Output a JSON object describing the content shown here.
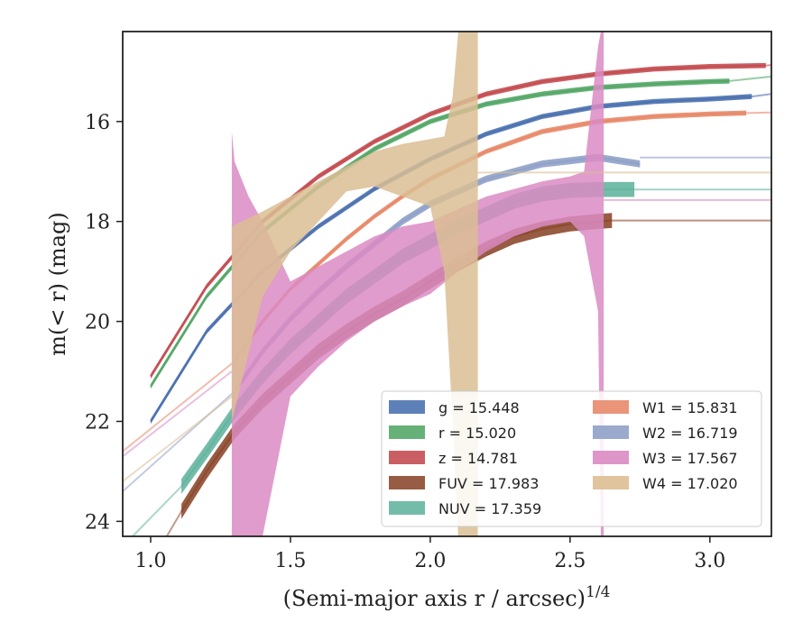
{
  "chart_data": {
    "type": "line",
    "title": "",
    "xlabel": "(Semi-major axis r / arcsec)",
    "xlabel_exponent": "1/4",
    "ylabel": "m(< r) (mag)",
    "xlim": [
      0.9,
      3.22
    ],
    "ylim": [
      24.3,
      14.2
    ],
    "y_inverted": true,
    "x_ticks": [
      1.0,
      1.5,
      2.0,
      2.5,
      3.0
    ],
    "x_tick_labels": [
      "1.0",
      "1.5",
      "2.0",
      "2.5",
      "3.0"
    ],
    "y_ticks": [
      16,
      18,
      20,
      22,
      24
    ],
    "y_tick_labels": [
      "16",
      "18",
      "20",
      "22",
      "24"
    ],
    "grid": false,
    "legend_position": "lower-right",
    "legend_columns": 2,
    "series": [
      {
        "id": "g",
        "label": "g = 15.448",
        "color": "#4C72B0",
        "band": 0.05,
        "x": [
          1.0,
          1.2,
          1.4,
          1.6,
          1.8,
          2.0,
          2.2,
          2.4,
          2.6,
          2.8,
          3.0,
          3.15
        ],
        "y": [
          22.0,
          20.2,
          19.0,
          18.1,
          17.35,
          16.75,
          16.25,
          15.9,
          15.7,
          15.6,
          15.55,
          15.5
        ],
        "ext_x": [
          3.15,
          3.22
        ],
        "ext_y": [
          15.5,
          15.45
        ]
      },
      {
        "id": "r",
        "label": "r = 15.020",
        "color": "#55A868",
        "band": 0.05,
        "x": [
          1.0,
          1.2,
          1.4,
          1.6,
          1.8,
          2.0,
          2.2,
          2.4,
          2.6,
          2.8,
          3.0,
          3.07
        ],
        "y": [
          21.3,
          19.5,
          18.2,
          17.3,
          16.55,
          16.0,
          15.65,
          15.45,
          15.32,
          15.25,
          15.2,
          15.19
        ],
        "ext_x": [
          3.07,
          3.22
        ],
        "ext_y": [
          15.19,
          15.1
        ]
      },
      {
        "id": "z",
        "label": "z = 14.781",
        "color": "#C44E52",
        "band": 0.05,
        "x": [
          1.0,
          1.2,
          1.4,
          1.6,
          1.8,
          2.0,
          2.2,
          2.4,
          2.6,
          2.8,
          3.0,
          3.2
        ],
        "y": [
          21.1,
          19.3,
          18.0,
          17.1,
          16.4,
          15.85,
          15.45,
          15.2,
          15.05,
          14.95,
          14.9,
          14.88
        ],
        "ext_x": [
          3.2,
          3.22
        ],
        "ext_y": [
          14.88,
          14.87
        ]
      },
      {
        "id": "FUV",
        "label": "FUV = 17.983",
        "color": "#8C4A2F",
        "band": 0.15,
        "x": [
          1.11,
          1.2,
          1.3,
          1.4,
          1.5,
          1.6,
          1.7,
          1.8,
          1.9,
          2.0,
          2.1,
          2.2,
          2.3,
          2.4,
          2.5,
          2.6,
          2.65
        ],
        "y": [
          23.8,
          23.0,
          22.2,
          21.6,
          21.1,
          20.6,
          20.2,
          19.85,
          19.55,
          19.2,
          18.85,
          18.55,
          18.3,
          18.15,
          18.05,
          18.0,
          17.98
        ],
        "ext_x": [
          2.65,
          3.22
        ],
        "ext_y": [
          17.98,
          17.98
        ],
        "pre_x": [
          0.9,
          1.11
        ],
        "pre_y": [
          25.8,
          23.8
        ]
      },
      {
        "id": "NUV",
        "label": "NUV = 17.359",
        "color": "#64B5A0",
        "band": 0.15,
        "x": [
          1.11,
          1.2,
          1.3,
          1.4,
          1.5,
          1.6,
          1.7,
          1.8,
          1.9,
          2.0,
          2.1,
          2.2,
          2.3,
          2.4,
          2.5,
          2.6,
          2.73
        ],
        "y": [
          23.3,
          22.6,
          21.8,
          21.1,
          20.5,
          20.0,
          19.5,
          19.1,
          18.7,
          18.4,
          18.1,
          17.85,
          17.6,
          17.45,
          17.38,
          17.36,
          17.36
        ],
        "ext_x": [
          2.73,
          3.22
        ],
        "ext_y": [
          17.36,
          17.36
        ],
        "pre_x": [
          0.9,
          1.11
        ],
        "pre_y": [
          24.5,
          23.3
        ]
      },
      {
        "id": "W1",
        "label": "W1 = 15.831",
        "color": "#E8896A",
        "band": 0.05,
        "x": [
          1.3,
          1.4,
          1.5,
          1.6,
          1.7,
          1.8,
          1.9,
          2.0,
          2.2,
          2.4,
          2.6,
          2.8,
          3.0,
          3.13
        ],
        "y": [
          20.8,
          20.0,
          19.35,
          18.85,
          18.35,
          17.9,
          17.5,
          17.15,
          16.6,
          16.2,
          16.0,
          15.9,
          15.85,
          15.83
        ],
        "ext_x": [
          3.13,
          3.22
        ],
        "ext_y": [
          15.83,
          15.82
        ],
        "pre_x": [
          0.9,
          1.3
        ],
        "pre_y": [
          22.6,
          20.8
        ]
      },
      {
        "id": "W2",
        "label": "W2 = 16.719",
        "color": "#8FA1C8",
        "band": 0.07,
        "x": [
          1.3,
          1.4,
          1.5,
          1.6,
          1.7,
          1.8,
          1.9,
          2.0,
          2.2,
          2.4,
          2.6,
          2.75
        ],
        "y": [
          21.4,
          20.6,
          19.95,
          19.4,
          18.9,
          18.45,
          18.0,
          17.65,
          17.15,
          16.85,
          16.72,
          16.85
        ],
        "ext_x": [
          2.75,
          3.22
        ],
        "ext_y": [
          16.72,
          16.72
        ],
        "pre_x": [
          0.9,
          1.3
        ],
        "pre_y": [
          23.4,
          21.4
        ]
      },
      {
        "id": "W3",
        "label": "W3 = 17.567",
        "color": "#DA8BC3",
        "fill_x": [
          1.29,
          1.3,
          1.35,
          1.4,
          1.5,
          1.6,
          1.7,
          1.8,
          1.9,
          2.0,
          2.1,
          2.2,
          2.3,
          2.4,
          2.5,
          2.55,
          2.6,
          2.61,
          2.62
        ],
        "fill_upper": [
          16.2,
          16.8,
          17.5,
          18.0,
          19.2,
          18.9,
          18.6,
          18.3,
          18.1,
          18.0,
          17.75,
          17.5,
          17.35,
          17.2,
          17.1,
          17.0,
          14.5,
          14.2,
          14.2
        ],
        "fill_lower": [
          24.3,
          24.3,
          24.3,
          24.3,
          21.5,
          20.9,
          20.4,
          20.0,
          19.7,
          19.45,
          19.0,
          18.6,
          18.3,
          18.1,
          18.0,
          18.3,
          19.8,
          24.3,
          24.3
        ],
        "ext_x": [
          2.62,
          3.22
        ],
        "ext_y": [
          17.57,
          17.57
        ],
        "pre_x": [
          0.9,
          1.29
        ],
        "pre_y": [
          22.7,
          21.0
        ]
      },
      {
        "id": "W4",
        "label": "W4 = 17.020",
        "color": "#DBBE94",
        "fill_x": [
          1.29,
          1.4,
          1.5,
          1.6,
          1.7,
          1.8,
          1.9,
          2.0,
          2.05,
          2.08,
          2.1,
          2.13,
          2.15,
          2.16,
          2.17
        ],
        "fill_upper": [
          18.1,
          17.8,
          17.5,
          17.2,
          16.9,
          16.6,
          16.45,
          16.35,
          16.3,
          15.5,
          14.2,
          14.2,
          14.2,
          14.2,
          14.2
        ],
        "fill_lower": [
          22.0,
          19.5,
          18.6,
          18.0,
          17.4,
          17.3,
          17.5,
          17.7,
          19.0,
          22.0,
          24.3,
          24.3,
          24.3,
          24.3,
          24.3
        ],
        "ext_x": [
          2.17,
          3.22
        ],
        "ext_y": [
          17.02,
          17.02
        ],
        "pre_x": [
          0.9,
          1.29
        ],
        "pre_y": [
          23.2,
          21.5
        ]
      }
    ]
  }
}
